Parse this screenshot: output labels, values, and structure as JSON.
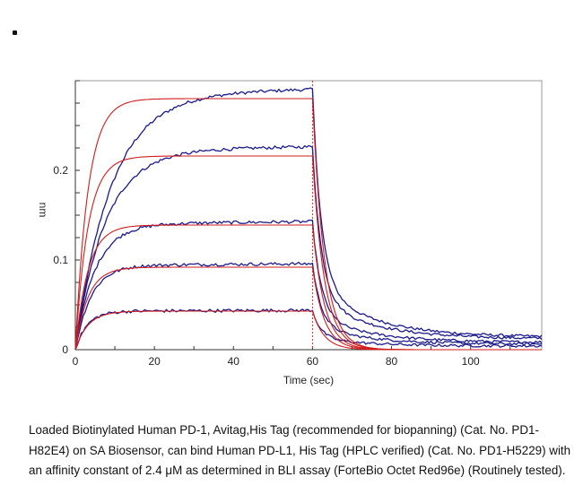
{
  "caption": "Loaded Biotinylated Human PD-1, Avitag,His Tag (recommended for biopanning) (Cat. No. PD1-H82E4) on SA Biosensor, can bind Human PD-L1, His Tag (HPLC verified) (Cat. No. PD1-H5229) with an affinity constant of 2.4 μM as determined in BLI assay (ForteBio Octet Red96e) (Routinely tested).",
  "chart_data": {
    "type": "line",
    "title": "",
    "xlabel": "Time (sec)",
    "ylabel": "nm",
    "xlim": [
      0,
      118
    ],
    "ylim": [
      0,
      0.3
    ],
    "x_ticks": [
      0,
      20,
      40,
      60,
      80,
      100
    ],
    "y_ticks": [
      0,
      0.1,
      0.2
    ],
    "y_tick_labels": [
      "0",
      "0.1",
      "0.2"
    ],
    "grid": false,
    "association_end": 60,
    "dissociation_end": 118,
    "colors": {
      "data": "#1a1a8c",
      "fit": "#d21c1c",
      "marker": "#c83232"
    },
    "series": [
      {
        "kind": "data",
        "color": "#1a1a8c",
        "plateau": 0.285,
        "tau": 9.0,
        "end": 0.014
      },
      {
        "kind": "data",
        "color": "#1a1a8c",
        "plateau": 0.222,
        "tau": 7.5,
        "end": 0.012
      },
      {
        "kind": "data",
        "color": "#1a1a8c",
        "plateau": 0.14,
        "tau": 5.0,
        "end": 0.008
      },
      {
        "kind": "data",
        "color": "#1a1a8c",
        "plateau": 0.094,
        "tau": 4.0,
        "end": 0.006
      },
      {
        "kind": "data",
        "color": "#1a1a8c",
        "plateau": 0.043,
        "tau": 3.0,
        "end": 0.004
      },
      {
        "kind": "fit",
        "color": "#d21c1c",
        "plateau": 0.28,
        "tau": 3.2,
        "end": 0.0
      },
      {
        "kind": "fit",
        "color": "#d21c1c",
        "plateau": 0.216,
        "tau": 3.2,
        "end": 0.0
      },
      {
        "kind": "fit",
        "color": "#d21c1c",
        "plateau": 0.139,
        "tau": 3.2,
        "end": 0.0
      },
      {
        "kind": "fit",
        "color": "#d21c1c",
        "plateau": 0.092,
        "tau": 3.2,
        "end": 0.0
      },
      {
        "kind": "fit",
        "color": "#d21c1c",
        "plateau": 0.043,
        "tau": 3.2,
        "end": 0.0
      }
    ]
  }
}
